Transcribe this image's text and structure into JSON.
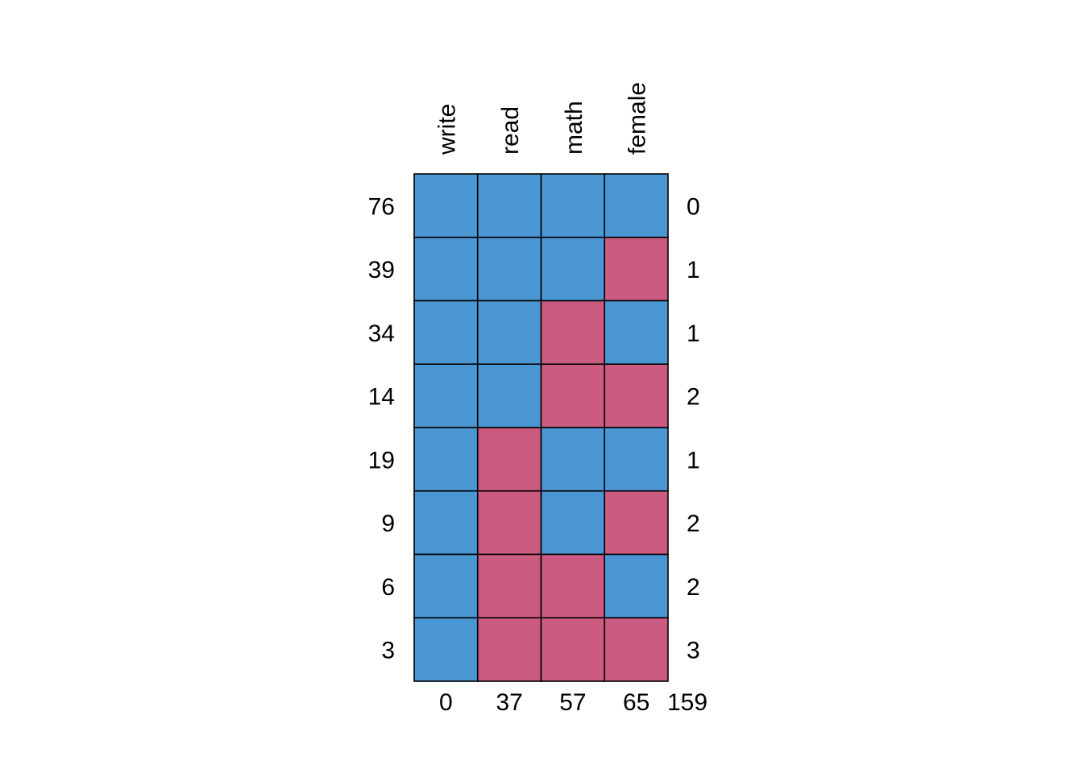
{
  "chart_data": {
    "type": "heatmap",
    "title": "",
    "variables": [
      "write",
      "read",
      "math",
      "female"
    ],
    "patterns": [
      {
        "count": 76,
        "missing": [
          0,
          0,
          0,
          0
        ],
        "n_missing": 0
      },
      {
        "count": 39,
        "missing": [
          0,
          0,
          0,
          1
        ],
        "n_missing": 1
      },
      {
        "count": 34,
        "missing": [
          0,
          0,
          1,
          0
        ],
        "n_missing": 1
      },
      {
        "count": 14,
        "missing": [
          0,
          0,
          1,
          1
        ],
        "n_missing": 2
      },
      {
        "count": 19,
        "missing": [
          0,
          1,
          0,
          0
        ],
        "n_missing": 1
      },
      {
        "count": 9,
        "missing": [
          0,
          1,
          0,
          1
        ],
        "n_missing": 2
      },
      {
        "count": 6,
        "missing": [
          0,
          1,
          1,
          0
        ],
        "n_missing": 2
      },
      {
        "count": 3,
        "missing": [
          0,
          1,
          1,
          1
        ],
        "n_missing": 3
      }
    ],
    "column_missing_totals": [
      0,
      37,
      57,
      65
    ],
    "total_missing": 159,
    "colors": {
      "observed": "#4B97D4",
      "missing": "#CB5B80",
      "border": "#000000"
    }
  }
}
